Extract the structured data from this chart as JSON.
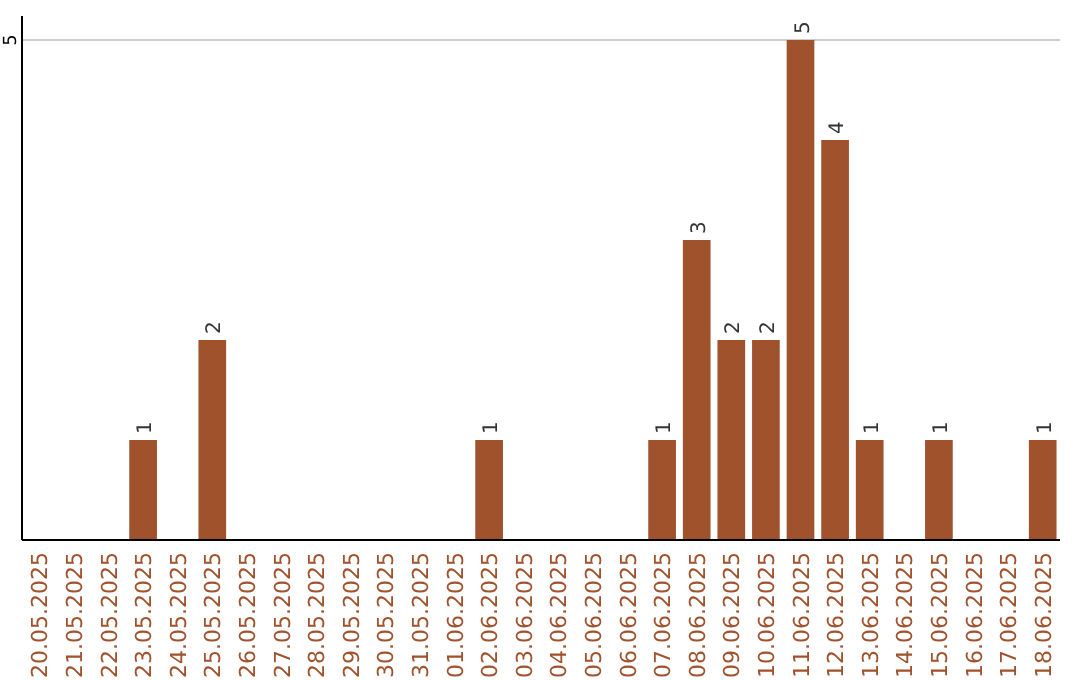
{
  "chart_data": {
    "type": "bar",
    "categories": [
      "20.05.2025",
      "21.05.2025",
      "22.05.2025",
      "23.05.2025",
      "24.05.2025",
      "25.05.2025",
      "26.05.2025",
      "27.05.2025",
      "28.05.2025",
      "29.05.2025",
      "30.05.2025",
      "31.05.2025",
      "01.06.2025",
      "02.06.2025",
      "03.06.2025",
      "04.06.2025",
      "05.06.2025",
      "06.06.2025",
      "07.06.2025",
      "08.06.2025",
      "09.06.2025",
      "10.06.2025",
      "11.06.2025",
      "12.06.2025",
      "13.06.2025",
      "14.06.2025",
      "15.06.2025",
      "16.06.2025",
      "17.06.2025",
      "18.06.2025"
    ],
    "values": [
      0,
      0,
      0,
      1,
      0,
      2,
      0,
      0,
      0,
      0,
      0,
      0,
      0,
      1,
      0,
      0,
      0,
      0,
      1,
      3,
      2,
      2,
      5,
      4,
      1,
      0,
      1,
      0,
      0,
      1
    ],
    "value_labels": [
      null,
      null,
      null,
      "1",
      null,
      "2",
      null,
      null,
      null,
      null,
      null,
      null,
      null,
      "1",
      null,
      null,
      null,
      null,
      "1",
      "3",
      "2",
      "2",
      "5",
      "4",
      "1",
      null,
      "1",
      null,
      null,
      "1"
    ],
    "color": "#a0522d",
    "ylim": [
      0,
      5.24
    ],
    "yticks": [
      5
    ],
    "grid": "y"
  }
}
